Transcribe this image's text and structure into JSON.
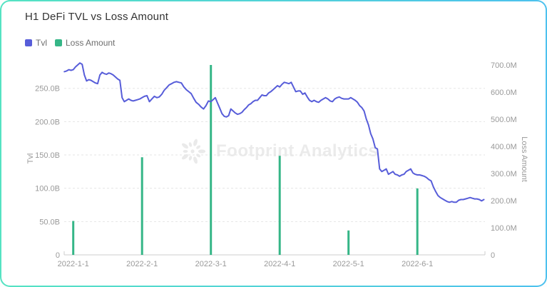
{
  "card": {
    "title": "H1 DeFi TVL vs Loss Amount"
  },
  "legend": {
    "items": [
      {
        "label": "Tvl",
        "color": "#575dd9"
      },
      {
        "label": "Loss Amount",
        "color": "#35b687"
      }
    ]
  },
  "watermark": {
    "text": "Footprint Analytics",
    "icon": "sunburst-icon"
  },
  "colors": {
    "card_border_gradient": [
      "#55e3c2",
      "#4dc1ee"
    ],
    "tvl_line": "#575dd9",
    "loss_bar": "#35b687",
    "grid_line": "#e5e5e5",
    "axis_line": "#cccccc",
    "tick_text": "#999999",
    "title_text": "#333333",
    "watermark_text": "#ebebeb"
  },
  "chart_data": {
    "type": "line+bar",
    "title": "H1 DeFi TVL vs Loss Amount",
    "grid": "horizontal dashed lines only",
    "legend_position": "top-left",
    "x_axis": {
      "tick_labels": [
        "2022-1-1",
        "2022-2-1",
        "2022-3-1",
        "2022-4-1",
        "2022-5-1",
        "2022-6-1"
      ]
    },
    "left_axis": {
      "name": "Tvl",
      "unit": "B",
      "ticks": [
        0,
        50,
        100,
        150,
        200,
        250
      ],
      "tick_labels": [
        "0",
        "50.0B",
        "100.0B",
        "150.0B",
        "200.0B",
        "250.0B"
      ],
      "range_billion": [
        0,
        290
      ]
    },
    "right_axis": {
      "name": "Loss Amount",
      "unit": "M",
      "ticks": [
        0,
        100,
        200,
        300,
        400,
        500,
        600,
        700
      ],
      "tick_labels": [
        "0",
        "100.0M",
        "200.0M",
        "300.0M",
        "400.0M",
        "500.0M",
        "600.0M",
        "700.0M"
      ],
      "range_million": [
        0,
        760
      ]
    },
    "series": [
      {
        "name": "Tvl",
        "type": "line",
        "axis": "left",
        "unit": "billion USD",
        "color": "#575dd9",
        "start_date": "2021-12-28",
        "start_day_offset": -4,
        "daily_values_billion": [
          275,
          276,
          278,
          277,
          278,
          282,
          285,
          288,
          286,
          270,
          261,
          263,
          262,
          260,
          258,
          257,
          270,
          274,
          272,
          271,
          273,
          272,
          270,
          267,
          264,
          262,
          236,
          230,
          232,
          234,
          232,
          231,
          232,
          233,
          234,
          236,
          238,
          239,
          230,
          234,
          238,
          236,
          237,
          241,
          247,
          251,
          255,
          257,
          259,
          260,
          259,
          258,
          252,
          248,
          245,
          242,
          235,
          229,
          226,
          222,
          219,
          224,
          231,
          230,
          233,
          236,
          228,
          220,
          212,
          208,
          207,
          209,
          219,
          216,
          213,
          211,
          212,
          214,
          218,
          221,
          225,
          227,
          230,
          232,
          232,
          236,
          240,
          239,
          239,
          243,
          245,
          248,
          251,
          254,
          252,
          256,
          259,
          258,
          257,
          259,
          252,
          245,
          246,
          246,
          241,
          243,
          237,
          232,
          230,
          232,
          230,
          229,
          232,
          234,
          236,
          234,
          231,
          230,
          234,
          236,
          237,
          235,
          234,
          234,
          234,
          236,
          234,
          232,
          229,
          224,
          221,
          216,
          204,
          195,
          182,
          174,
          161,
          159,
          129,
          125,
          127,
          129,
          121,
          123,
          125,
          121,
          120,
          118,
          120,
          121,
          125,
          127,
          129,
          123,
          121,
          120,
          120,
          119,
          118,
          116,
          113,
          111,
          102,
          95,
          89,
          86,
          84,
          82,
          80,
          79,
          80,
          79,
          79,
          82,
          83,
          83,
          84,
          85,
          86,
          85,
          84,
          84,
          83,
          81,
          83
        ]
      },
      {
        "name": "Loss Amount",
        "type": "bar",
        "axis": "right",
        "unit": "million USD",
        "color": "#35b687",
        "months": [
          "2022-1",
          "2022-2",
          "2022-3",
          "2022-4",
          "2022-5",
          "2022-6"
        ],
        "monthly_values_million": [
          125,
          360,
          700,
          365,
          90,
          245
        ]
      }
    ]
  }
}
